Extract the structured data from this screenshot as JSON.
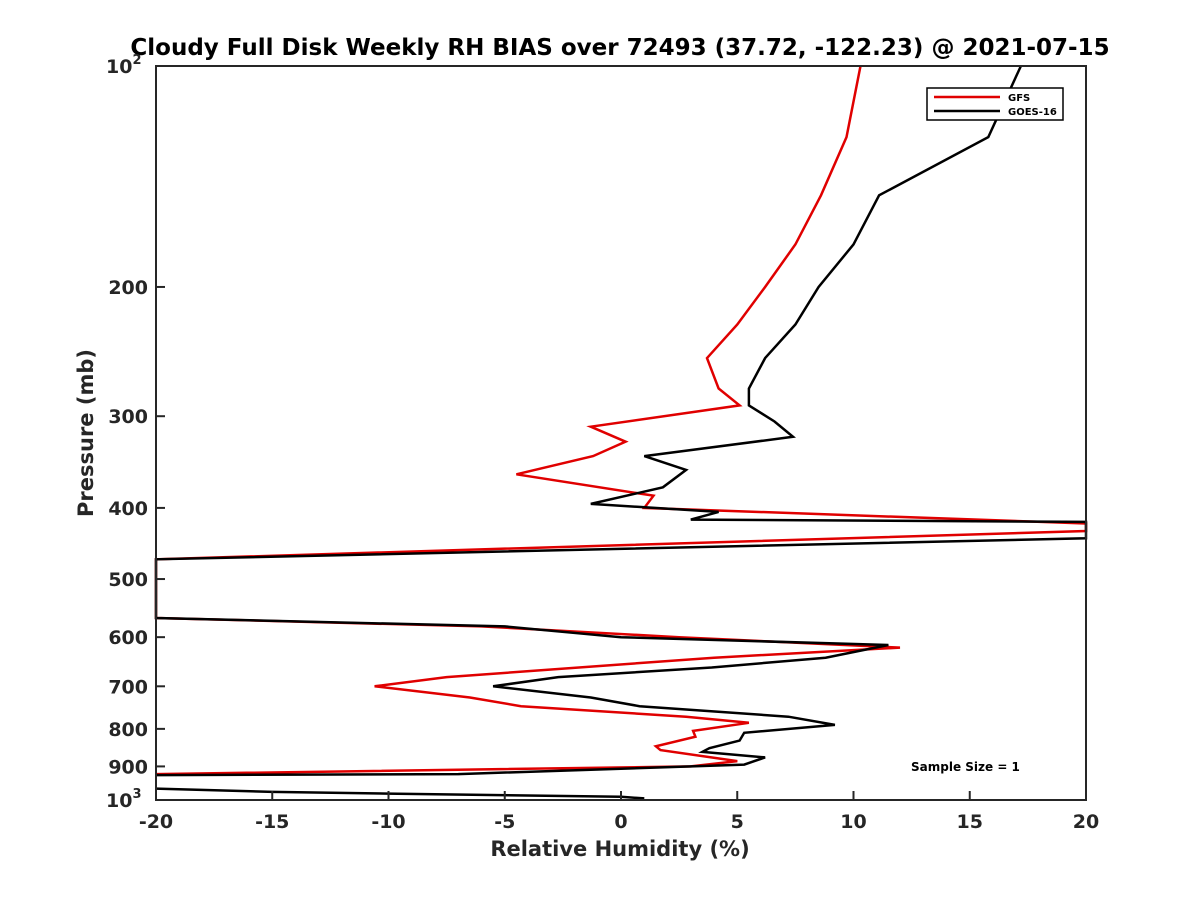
{
  "chart_data": {
    "type": "line",
    "title": "Cloudy Full Disk Weekly RH BIAS over 72493 (37.72, -122.23) @ 2021-07-15",
    "xlabel": "Relative Humidity (%)",
    "ylabel": "Pressure (mb)",
    "xlim": [
      -20,
      20
    ],
    "ylim": [
      100,
      1000
    ],
    "y_scale": "log",
    "y_reversed": true,
    "grid": false,
    "legend_position": "top-right",
    "x_ticks": [
      "-20",
      "-15",
      "-10",
      "-5",
      "0",
      "5",
      "10",
      "15",
      "20"
    ],
    "y_ticks": [
      {
        "value": 100,
        "base": "10",
        "exp": "2"
      },
      {
        "value": 200,
        "label": "200"
      },
      {
        "value": 300,
        "label": "300"
      },
      {
        "value": 400,
        "label": "400"
      },
      {
        "value": 500,
        "label": "500"
      },
      {
        "value": 600,
        "label": "600"
      },
      {
        "value": 700,
        "label": "700"
      },
      {
        "value": 800,
        "label": "800"
      },
      {
        "value": 900,
        "label": "900"
      },
      {
        "value": 1000,
        "base": "10",
        "exp": "3"
      }
    ],
    "series": [
      {
        "name": "GFS",
        "color": "#e00000",
        "points": [
          [
            10.3,
            100
          ],
          [
            9.7,
            125
          ],
          [
            8.6,
            150
          ],
          [
            7.5,
            175
          ],
          [
            6.2,
            200
          ],
          [
            5,
            225
          ],
          [
            3.7,
            250
          ],
          [
            4.2,
            275
          ],
          [
            5.1,
            290
          ],
          [
            -1.3,
            310
          ],
          [
            0.2,
            325
          ],
          [
            -1.2,
            340
          ],
          [
            -4.5,
            360
          ],
          [
            1.4,
            385
          ],
          [
            1.0,
            400
          ],
          [
            20,
            420
          ],
          [
            20,
            430
          ],
          [
            -20,
            470
          ],
          [
            -20,
            565
          ],
          [
            -6,
            580
          ],
          [
            2.5,
            600
          ],
          [
            12,
            620
          ],
          [
            4,
            640
          ],
          [
            -7.5,
            680
          ],
          [
            -10.6,
            700
          ],
          [
            -6.5,
            725
          ],
          [
            -4.3,
            745
          ],
          [
            2.8,
            770
          ],
          [
            5.5,
            785
          ],
          [
            3.1,
            805
          ],
          [
            3.2,
            820
          ],
          [
            1.5,
            845
          ],
          [
            1.7,
            855
          ],
          [
            5.0,
            885
          ],
          [
            3.0,
            900
          ],
          [
            -20,
            922
          ]
        ]
      },
      {
        "name": "GOES-16",
        "color": "#000000",
        "points": [
          [
            17.2,
            100
          ],
          [
            15.8,
            125
          ],
          [
            11.1,
            150
          ],
          [
            10,
            175
          ],
          [
            8.5,
            200
          ],
          [
            7.5,
            225
          ],
          [
            6.2,
            250
          ],
          [
            5.5,
            275
          ],
          [
            5.5,
            290
          ],
          [
            6.6,
            305
          ],
          [
            7.4,
            320
          ],
          [
            1.0,
            340
          ],
          [
            2.8,
            355
          ],
          [
            1.8,
            375
          ],
          [
            -1.3,
            395
          ],
          [
            4.2,
            405
          ],
          [
            3.0,
            415
          ],
          [
            20,
            418
          ],
          [
            20,
            440
          ],
          [
            -20,
            470
          ],
          [
            -20,
            565
          ],
          [
            -5,
            580
          ],
          [
            0,
            600
          ],
          [
            11.5,
            615
          ],
          [
            8.8,
            640
          ],
          [
            3.9,
            660
          ],
          [
            -2.7,
            680
          ],
          [
            -5.5,
            700
          ],
          [
            -1.3,
            725
          ],
          [
            0.8,
            745
          ],
          [
            7.2,
            770
          ],
          [
            9.2,
            790
          ],
          [
            5.3,
            810
          ],
          [
            5.1,
            830
          ],
          [
            3.8,
            850
          ],
          [
            3.5,
            860
          ],
          [
            6.2,
            875
          ],
          [
            5.3,
            895
          ],
          [
            -7.0,
            922
          ],
          [
            -20,
            925
          ]
        ]
      },
      {
        "name": "",
        "color": "#000000",
        "points": [
          [
            -20,
            965
          ],
          [
            -15,
            975
          ],
          [
            -10,
            980
          ],
          [
            0,
            990
          ],
          [
            1,
            995
          ]
        ]
      }
    ],
    "annotations": [
      "Sample Size = 1"
    ]
  }
}
